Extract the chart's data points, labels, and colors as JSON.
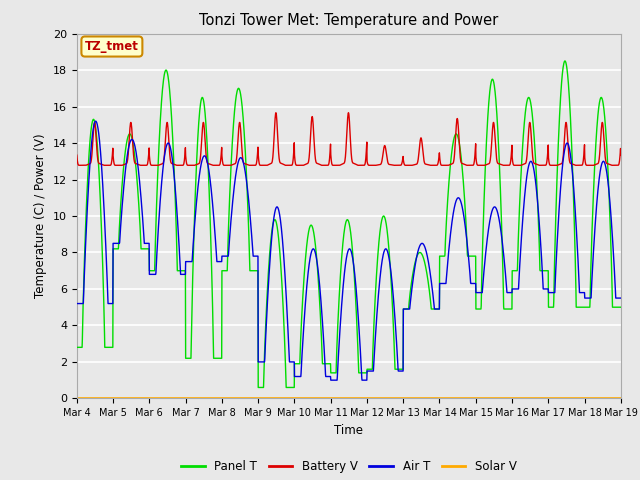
{
  "title": "Tonzi Tower Met: Temperature and Power",
  "xlabel": "Time",
  "ylabel": "Temperature (C) / Power (V)",
  "ylim": [
    0,
    20
  ],
  "yticks": [
    0,
    2,
    4,
    6,
    8,
    10,
    12,
    14,
    16,
    18,
    20
  ],
  "xtick_labels": [
    "Mar 4",
    "Mar 5",
    "Mar 6",
    "Mar 7",
    "Mar 8",
    "Mar 9",
    "Mar 10",
    "Mar 11",
    "Mar 12",
    "Mar 13",
    "Mar 14",
    "Mar 15",
    "Mar 16",
    "Mar 17",
    "Mar 18",
    "Mar 19"
  ],
  "panel_t_color": "#00dd00",
  "battery_v_color": "#dd0000",
  "air_t_color": "#0000dd",
  "solar_v_color": "#ffaa00",
  "bg_color": "#e8e8e8",
  "annotation_text": "TZ_tmet",
  "annotation_bg": "#ffffcc",
  "annotation_border": "#cc8800",
  "legend_labels": [
    "Panel T",
    "Battery V",
    "Air T",
    "Solar V"
  ],
  "panel_t_peaks": [
    15.3,
    14.5,
    18.0,
    16.5,
    17.0,
    9.8,
    9.5,
    9.8,
    10.0,
    8.0,
    14.5,
    17.5,
    16.5,
    18.5,
    16.5
  ],
  "panel_t_lows": [
    2.8,
    8.2,
    7.0,
    2.2,
    7.0,
    0.6,
    1.9,
    1.4,
    1.6,
    4.9,
    7.8,
    4.9,
    7.0,
    5.0,
    5.0
  ],
  "air_t_peaks": [
    15.2,
    14.2,
    14.0,
    13.3,
    13.2,
    10.5,
    8.2,
    8.2,
    8.2,
    8.5,
    11.0,
    10.5,
    13.0,
    14.0,
    13.0
  ],
  "air_t_lows": [
    5.2,
    8.5,
    6.8,
    7.5,
    7.8,
    2.0,
    1.2,
    1.0,
    1.5,
    4.9,
    6.3,
    5.8,
    6.0,
    5.8,
    5.5
  ],
  "battery_base": 12.78,
  "battery_spike_peaks": [
    15.0,
    15.0,
    15.0,
    15.0,
    15.0,
    15.5,
    15.3,
    15.5,
    13.8,
    14.2,
    15.2,
    15.0,
    15.0,
    15.0,
    15.0
  ]
}
